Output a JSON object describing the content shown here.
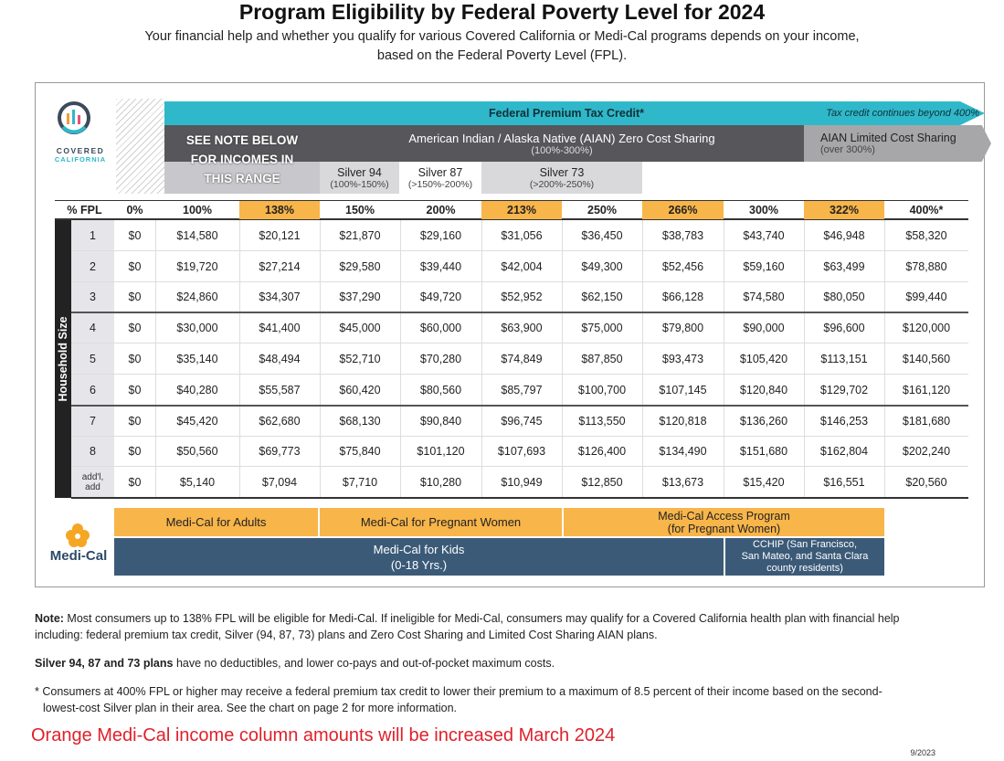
{
  "header": {
    "title": "Program Eligibility by Federal Poverty Level for 2024",
    "subtitle": [
      "Your financial help and whether you qualify for various Covered California or Medi-Cal programs depends on your income,",
      "based on the Federal Poverty Level (FPL)."
    ]
  },
  "logo": {
    "line1": "COVERED",
    "line2": "CALIFORNIA"
  },
  "programs": {
    "ptc": "Federal Premium Tax Credit*",
    "ptc_note": "Tax credit continues beyond 400%",
    "see_note": [
      "SEE NOTE BELOW",
      "FOR INCOMES IN",
      "THIS RANGE"
    ],
    "aian_zero": {
      "label": "American Indian / Alaska Native (AIAN) Zero Cost Sharing",
      "range": "(100%-300%)"
    },
    "aian_limited": {
      "label": "AIAN Limited Cost Sharing",
      "range": "(over 300%)"
    },
    "silver": [
      {
        "label": "Silver 94",
        "range": "(100%-150%)"
      },
      {
        "label": "Silver 87",
        "range": "(>150%-200%)"
      },
      {
        "label": "Silver 73",
        "range": "(>200%-250%)"
      }
    ]
  },
  "table": {
    "header_label": "% FPL",
    "row_axis_label": "Household Size",
    "columns": [
      "0%",
      "100%",
      "138%",
      "150%",
      "200%",
      "213%",
      "250%",
      "266%",
      "300%",
      "322%",
      "400%*"
    ],
    "rows": [
      {
        "size": "1",
        "values": [
          "$0",
          "$14,580",
          "$20,121",
          "$21,870",
          "$29,160",
          "$31,056",
          "$36,450",
          "$38,783",
          "$43,740",
          "$46,948",
          "$58,320"
        ]
      },
      {
        "size": "2",
        "values": [
          "$0",
          "$19,720",
          "$27,214",
          "$29,580",
          "$39,440",
          "$42,004",
          "$49,300",
          "$52,456",
          "$59,160",
          "$63,499",
          "$78,880"
        ]
      },
      {
        "size": "3",
        "values": [
          "$0",
          "$24,860",
          "$34,307",
          "$37,290",
          "$49,720",
          "$52,952",
          "$62,150",
          "$66,128",
          "$74,580",
          "$80,050",
          "$99,440"
        ]
      },
      {
        "size": "4",
        "values": [
          "$0",
          "$30,000",
          "$41,400",
          "$45,000",
          "$60,000",
          "$63,900",
          "$75,000",
          "$79,800",
          "$90,000",
          "$96,600",
          "$120,000"
        ]
      },
      {
        "size": "5",
        "values": [
          "$0",
          "$35,140",
          "$48,494",
          "$52,710",
          "$70,280",
          "$74,849",
          "$87,850",
          "$93,473",
          "$105,420",
          "$113,151",
          "$140,560"
        ]
      },
      {
        "size": "6",
        "values": [
          "$0",
          "$40,280",
          "$55,587",
          "$60,420",
          "$80,560",
          "$85,797",
          "$100,700",
          "$107,145",
          "$120,840",
          "$129,702",
          "$161,120"
        ]
      },
      {
        "size": "7",
        "values": [
          "$0",
          "$45,420",
          "$62,680",
          "$68,130",
          "$90,840",
          "$96,745",
          "$113,550",
          "$120,818",
          "$136,260",
          "$146,253",
          "$181,680"
        ]
      },
      {
        "size": "8",
        "values": [
          "$0",
          "$50,560",
          "$69,773",
          "$75,840",
          "$101,120",
          "$107,693",
          "$126,400",
          "$134,490",
          "$151,680",
          "$162,804",
          "$202,240"
        ]
      },
      {
        "size": [
          "add'l,",
          "add"
        ],
        "values": [
          "$0",
          "$5,140",
          "$7,094",
          "$7,710",
          "$10,280",
          "$10,949",
          "$12,850",
          "$13,673",
          "$15,420",
          "$16,551",
          "$20,560"
        ]
      }
    ]
  },
  "medi_cal": {
    "brand": "Medi-Cal",
    "adults": "Medi-Cal for Adults",
    "pregnant": "Medi-Cal for Pregnant Women",
    "access": [
      "Medi-Cal Access Program",
      "(for Pregnant Women)"
    ],
    "kids": [
      "Medi-Cal for Kids",
      "(0-18 Yrs.)"
    ],
    "cchip": [
      "CCHIP (San Francisco,",
      "San Mateo, and Santa Clara",
      "county residents)"
    ]
  },
  "notes": [
    {
      "bold": "Note:",
      "text": " Most consumers up to 138% FPL will be eligible for Medi-Cal. If ineligible for Medi-Cal, consumers may qualify for a Covered California health plan with financial help including: federal premium tax credit, Silver (94, 87, 73) plans and Zero Cost Sharing and Limited Cost Sharing AIAN plans."
    },
    {
      "bold": "Silver 94, 87 and 73 plans",
      "text": " have no deductibles, and lower co-pays and out-of-pocket maximum costs."
    },
    {
      "text": "* Consumers at 400% FPL or higher may receive a federal premium tax credit to lower their premium to a maximum of 8.5 percent of their income based on the second-lowest-cost Silver plan in their area. See the chart on page 2 for more information."
    }
  ],
  "alert": "Orange Medi-Cal income column amounts will be increased March 2024",
  "date": "9/2023"
}
